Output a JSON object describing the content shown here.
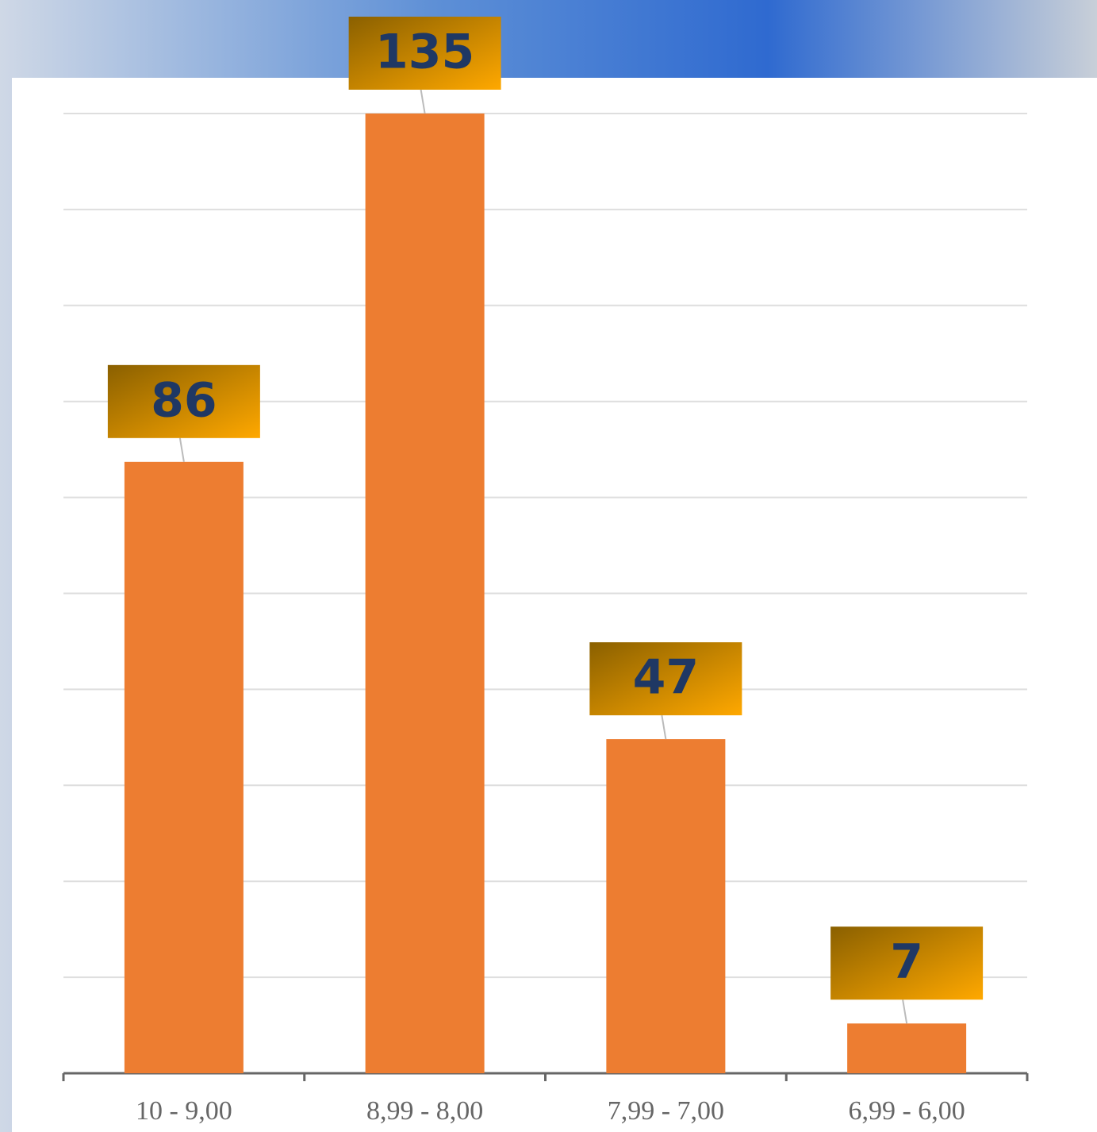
{
  "chart_data": {
    "type": "bar",
    "categories": [
      "10 - 9,00",
      "8,99 - 8,00",
      "7,99 - 7,00",
      "6,99 - 6,00"
    ],
    "values": [
      86,
      135,
      47,
      7
    ],
    "color": "#ed7d31",
    "ylim": [
      0,
      135
    ],
    "yticks": [
      0,
      13.5,
      27,
      40.5,
      54,
      67.5,
      81,
      94.5,
      108,
      121.5,
      135
    ],
    "grid": true
  }
}
